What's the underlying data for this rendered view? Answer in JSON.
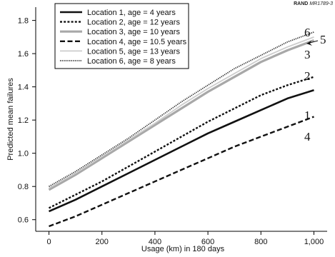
{
  "header": {
    "org": "RAND",
    "report_id": "MR1789-3"
  },
  "chart_data": {
    "type": "line",
    "xlabel": "Usage (km) in 180 days",
    "ylabel": "Predicted mean failures",
    "xlim": [
      -50,
      1050
    ],
    "ylim": [
      0.53,
      1.88
    ],
    "x_ticks": [
      0,
      200,
      400,
      600,
      800,
      1000
    ],
    "x_tick_labels": [
      "0",
      "200",
      "400",
      "600",
      "800",
      "1,000"
    ],
    "y_ticks": [
      0.6,
      0.8,
      1.0,
      1.2,
      1.4,
      1.6,
      1.8
    ],
    "y_tick_labels": [
      "0.6",
      "0.8",
      "1.0",
      "1.2",
      "1.4",
      "1.6",
      "1.8"
    ],
    "grid": false,
    "legend_position": "top-left",
    "x": [
      0,
      100,
      200,
      300,
      400,
      500,
      600,
      700,
      800,
      900,
      1000
    ],
    "series": [
      {
        "name": "Location 1, age = 4 years",
        "end_label": "1",
        "style": "solid-thick",
        "color": "#111111",
        "values": [
          0.65,
          0.72,
          0.8,
          0.88,
          0.96,
          1.04,
          1.12,
          1.19,
          1.26,
          1.33,
          1.38
        ]
      },
      {
        "name": "Location 2, age = 12 years",
        "end_label": "2",
        "style": "dotted-thick",
        "color": "#111111",
        "values": [
          0.67,
          0.75,
          0.83,
          0.92,
          1.01,
          1.1,
          1.19,
          1.27,
          1.35,
          1.41,
          1.46
        ]
      },
      {
        "name": "Location 3, age = 10 years",
        "end_label": "3",
        "style": "solid-gray-thick",
        "color": "#a8a8a8",
        "values": [
          0.78,
          0.87,
          0.97,
          1.07,
          1.17,
          1.27,
          1.37,
          1.46,
          1.55,
          1.62,
          1.68
        ]
      },
      {
        "name": "Location 4, age = 10.5 years",
        "end_label": "4",
        "style": "dashed-thick",
        "color": "#111111",
        "values": [
          0.56,
          0.62,
          0.69,
          0.76,
          0.83,
          0.9,
          0.97,
          1.04,
          1.1,
          1.16,
          1.22
        ]
      },
      {
        "name": "Location 5, age = 13 years",
        "end_label": "5",
        "style": "solid-lightgray",
        "color": "#cccccc",
        "values": [
          0.79,
          0.88,
          0.98,
          1.08,
          1.18,
          1.29,
          1.39,
          1.48,
          1.57,
          1.64,
          1.7
        ]
      },
      {
        "name": "Location 6, age = 8 years",
        "end_label": "6",
        "style": "dotted-fine",
        "color": "#333333",
        "values": [
          0.8,
          0.89,
          0.99,
          1.09,
          1.2,
          1.31,
          1.41,
          1.51,
          1.59,
          1.67,
          1.73
        ]
      }
    ]
  }
}
